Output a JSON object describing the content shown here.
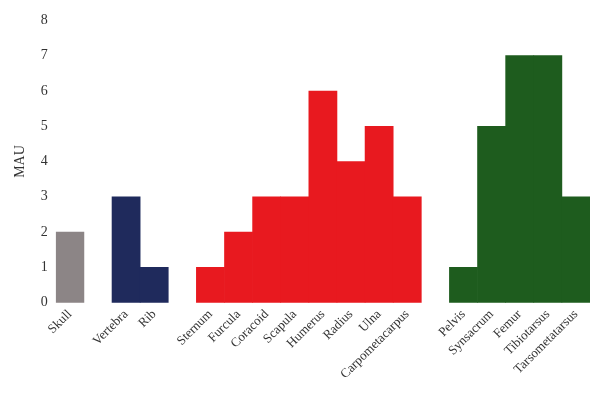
{
  "chart_data": {
    "type": "bar",
    "y_label": "MAU",
    "categories": [
      "Skull",
      "Vertebra",
      "Rib",
      "Sternum",
      "Furcula",
      "Coracoid",
      "Scapula",
      "Humerus",
      "Radius",
      "Ulna",
      "Carpometacarpus",
      "Pelvis",
      "Synsacrum",
      "Femur",
      "Tibiotarsus",
      "Tarsometatarsus"
    ],
    "values": [
      2,
      3,
      1,
      1,
      2,
      3,
      3,
      6,
      4,
      5,
      3,
      1,
      5,
      7,
      7,
      3
    ],
    "colors": [
      "#8c8586",
      "#1f2a5c",
      "#1f2a5c",
      "#e8191f",
      "#e8191f",
      "#e8191f",
      "#e8191f",
      "#e8191f",
      "#e8191f",
      "#e8191f",
      "#e8191f",
      "#1e5c1e",
      "#1e5c1e",
      "#1e5c1e",
      "#1e5c1e",
      "#1e5c1e"
    ],
    "ylim": [
      0,
      8
    ],
    "yticks": [
      0,
      1,
      2,
      3,
      4,
      5,
      6,
      7,
      8
    ],
    "grid": false
  }
}
